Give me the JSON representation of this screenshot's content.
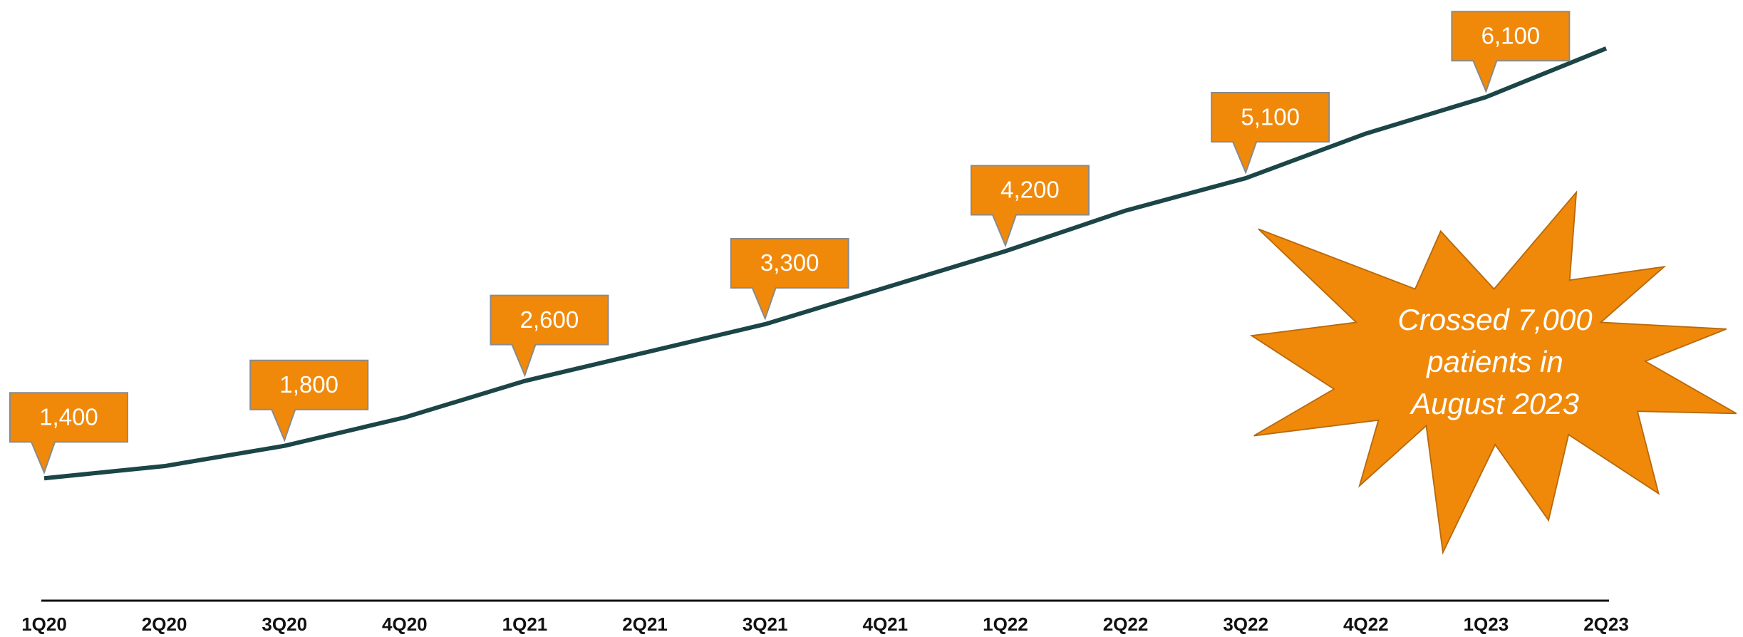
{
  "chart_data": {
    "type": "line",
    "categories": [
      "1Q20",
      "2Q20",
      "3Q20",
      "4Q20",
      "1Q21",
      "2Q21",
      "3Q21",
      "4Q21",
      "1Q22",
      "2Q22",
      "3Q22",
      "4Q22",
      "1Q23",
      "2Q23"
    ],
    "series": [
      {
        "color": "#1b4547",
        "values": [
          1400,
          1550,
          1800,
          2150,
          2600,
          2950,
          3300,
          3750,
          4200,
          4700,
          5100,
          5650,
          6100,
          6700
        ],
        "value_labels": [
          "1,400",
          null,
          "1,800",
          null,
          "2,600",
          null,
          "3,300",
          null,
          "4,200",
          null,
          "5,100",
          null,
          "6,100",
          null
        ]
      }
    ],
    "ylim": [
      -100,
      7200
    ],
    "callout_color": "#f0890a",
    "annotation": [
      "Crossed 7,000",
      "patients in",
      "August 2023"
    ]
  }
}
